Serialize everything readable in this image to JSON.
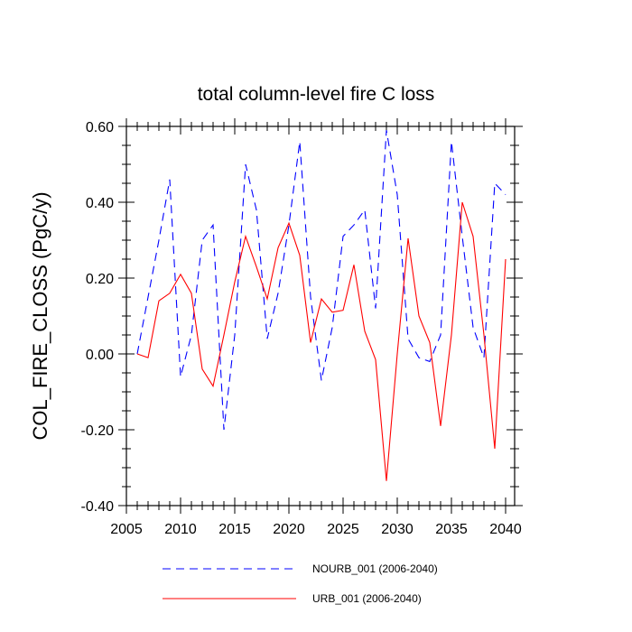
{
  "chart_data": {
    "type": "line",
    "title": "total column-level fire C loss",
    "xlabel": "",
    "ylabel": "COL_FIRE_CLOSS  (PgC/y)",
    "xlim": [
      2006,
      2040
    ],
    "ylim": [
      -0.4,
      0.6
    ],
    "x_ticks": [
      2005,
      2010,
      2015,
      2020,
      2025,
      2030,
      2035,
      2040
    ],
    "x_tick_labels": [
      "2005",
      "2010",
      "2015",
      "2020",
      "2025",
      "2030",
      "2035",
      "2040"
    ],
    "y_ticks": [
      -0.4,
      -0.2,
      0.0,
      0.2,
      0.4,
      0.6
    ],
    "y_tick_labels": [
      "-0.40",
      "-0.20",
      "0.00",
      "0.20",
      "0.40",
      "0.60"
    ],
    "x": [
      2006,
      2007,
      2008,
      2009,
      2010,
      2011,
      2012,
      2013,
      2014,
      2015,
      2016,
      2017,
      2018,
      2019,
      2020,
      2021,
      2022,
      2023,
      2024,
      2025,
      2026,
      2027,
      2028,
      2029,
      2030,
      2031,
      2032,
      2033,
      2034,
      2035,
      2036,
      2037,
      2038,
      2039,
      2040
    ],
    "series": [
      {
        "name": "NOURB_001 (2006-2040)",
        "color": "#0000ff",
        "dash": "dashed",
        "values": [
          0.0,
          0.15,
          0.3,
          0.46,
          -0.06,
          0.05,
          0.3,
          0.34,
          -0.2,
          0.05,
          0.5,
          0.38,
          0.04,
          0.16,
          0.34,
          0.56,
          0.15,
          -0.07,
          0.07,
          0.31,
          0.34,
          0.38,
          0.12,
          0.59,
          0.42,
          0.04,
          -0.01,
          -0.02,
          0.05,
          0.56,
          0.31,
          0.07,
          -0.01,
          0.45,
          0.42
        ]
      },
      {
        "name": "URB_001 (2006-2040)",
        "color": "#ff0000",
        "dash": "solid",
        "values": [
          0.0,
          -0.01,
          0.14,
          0.16,
          0.21,
          0.16,
          -0.04,
          -0.085,
          0.05,
          0.19,
          0.31,
          0.23,
          0.145,
          0.28,
          0.345,
          0.26,
          0.03,
          0.145,
          0.11,
          0.115,
          0.235,
          0.06,
          -0.015,
          -0.335,
          0.0,
          0.305,
          0.1,
          0.03,
          -0.19,
          0.05,
          0.4,
          0.31,
          0.05,
          -0.25,
          0.25
        ]
      }
    ]
  }
}
